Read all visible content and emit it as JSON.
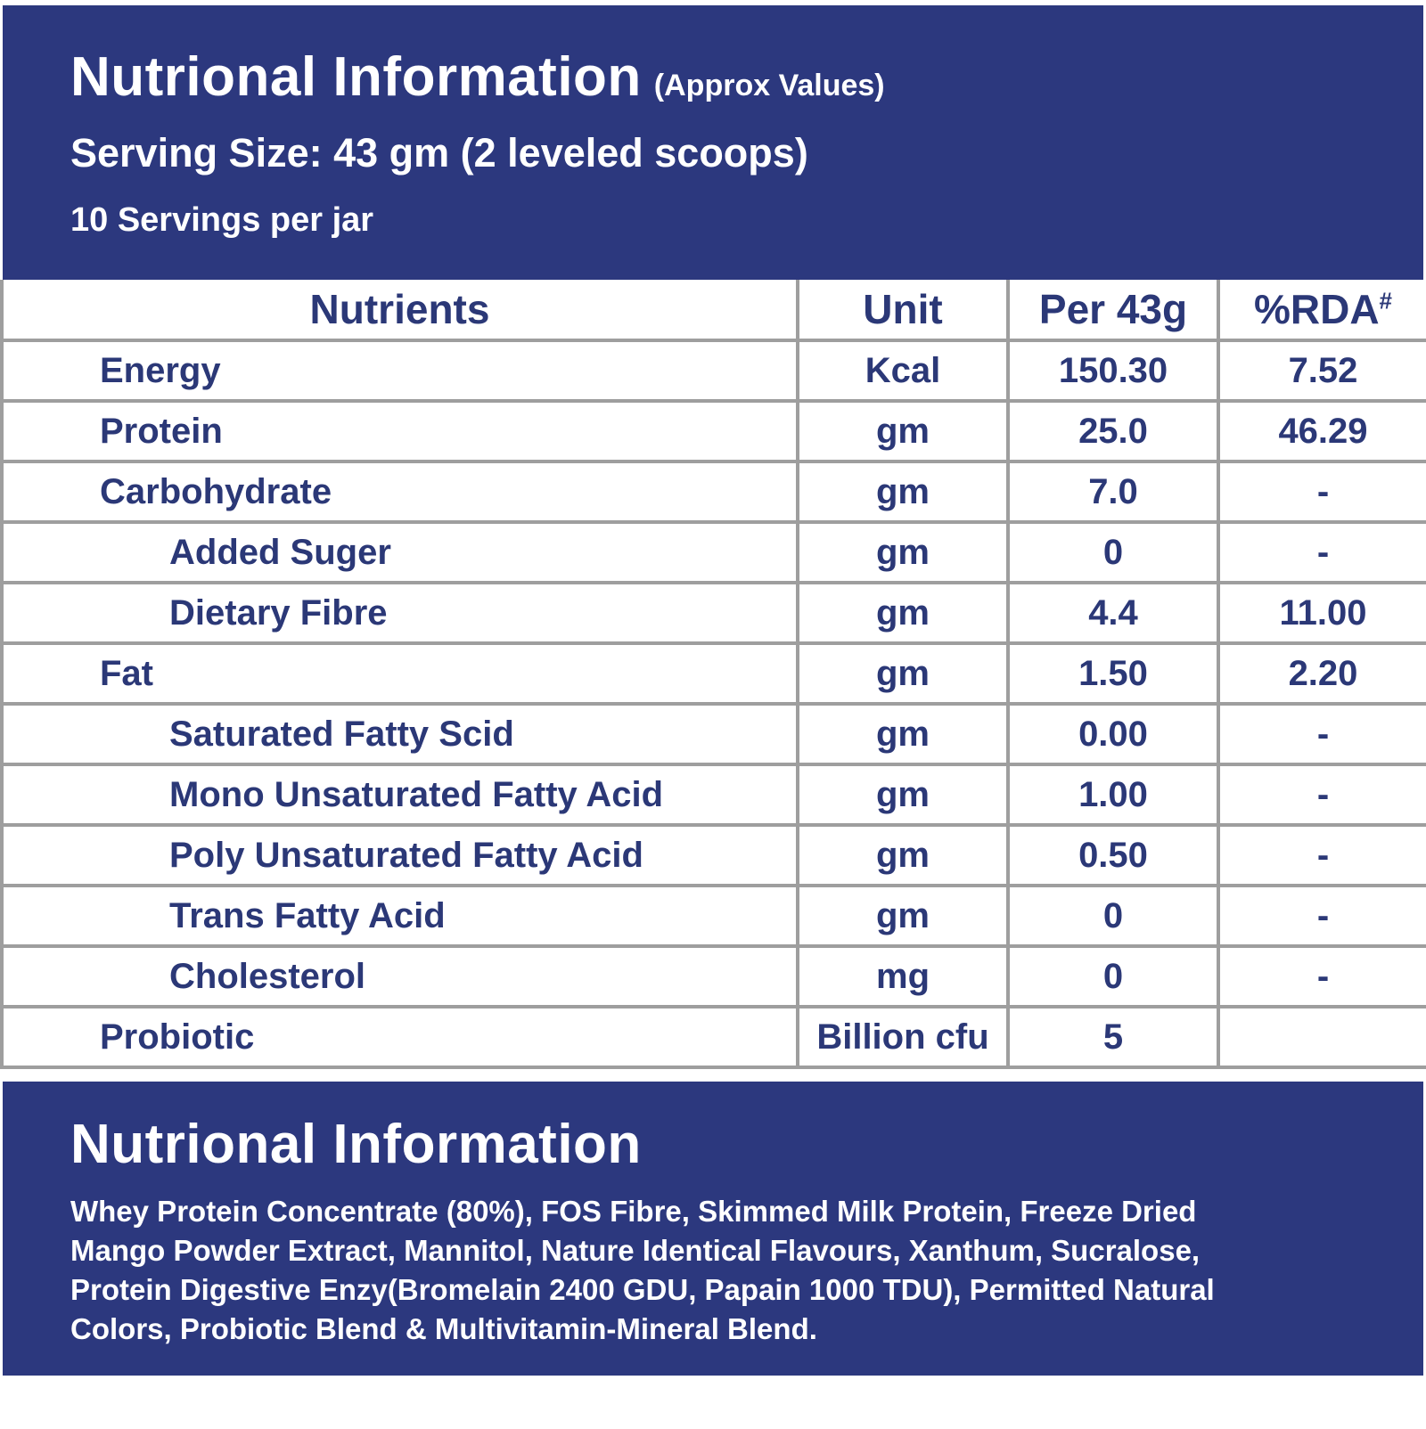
{
  "colors": {
    "navy_background": "#2c387e",
    "table_text_navy": "#2b3877",
    "border_gray": "#9e9e9e",
    "white": "#ffffff"
  },
  "header": {
    "title": "Nutrional Information",
    "title_suffix": "(Approx Values)",
    "serving_size": "Serving Size: 43 gm (2 leveled scoops)",
    "servings_per_jar": "10 Servings per jar"
  },
  "table": {
    "columns": {
      "nutrients": "Nutrients",
      "unit": "Unit",
      "per": "Per 43g",
      "rda": "%RDA",
      "rda_sup": "#"
    },
    "rows": [
      {
        "name": "Energy",
        "indent": 1,
        "unit": "Kcal",
        "per": "150.30",
        "rda": "7.52"
      },
      {
        "name": "Protein",
        "indent": 1,
        "unit": "gm",
        "per": "25.0",
        "rda": "46.29"
      },
      {
        "name": "Carbohydrate",
        "indent": 1,
        "unit": "gm",
        "per": "7.0",
        "rda": "-"
      },
      {
        "name": "Added Suger",
        "indent": 2,
        "unit": "gm",
        "per": "0",
        "rda": "-"
      },
      {
        "name": "Dietary Fibre",
        "indent": 2,
        "unit": "gm",
        "per": "4.4",
        "rda": "11.00"
      },
      {
        "name": "Fat",
        "indent": 1,
        "unit": "gm",
        "per": "1.50",
        "rda": "2.20"
      },
      {
        "name": "Saturated Fatty Scid",
        "indent": 2,
        "unit": "gm",
        "per": "0.00",
        "rda": "-"
      },
      {
        "name": "Mono Unsaturated Fatty Acid",
        "indent": 2,
        "unit": "gm",
        "per": "1.00",
        "rda": "-"
      },
      {
        "name": "Poly Unsaturated Fatty Acid",
        "indent": 2,
        "unit": "gm",
        "per": "0.50",
        "rda": "-"
      },
      {
        "name": "Trans Fatty Acid",
        "indent": 2,
        "unit": "gm",
        "per": "0",
        "rda": "-"
      },
      {
        "name": "Cholesterol",
        "indent": 2,
        "unit": "mg",
        "per": "0",
        "rda": "-"
      },
      {
        "name": "Probiotic",
        "indent": 1,
        "unit": "Billion cfu",
        "per": "5",
        "rda": ""
      }
    ]
  },
  "footer": {
    "title": "Nutrional Information",
    "ingredients": "Whey Protein Concentrate (80%), FOS Fibre, Skimmed Milk Protein, Freeze Dried Mango Powder Extract, Mannitol, Nature Identical Flavours, Xanthum, Sucralose, Protein Digestive Enzy(Bromelain 2400 GDU, Papain 1000 TDU), Permitted Natural Colors, Probiotic Blend &amp; Multivitamin-Mineral Blend."
  }
}
